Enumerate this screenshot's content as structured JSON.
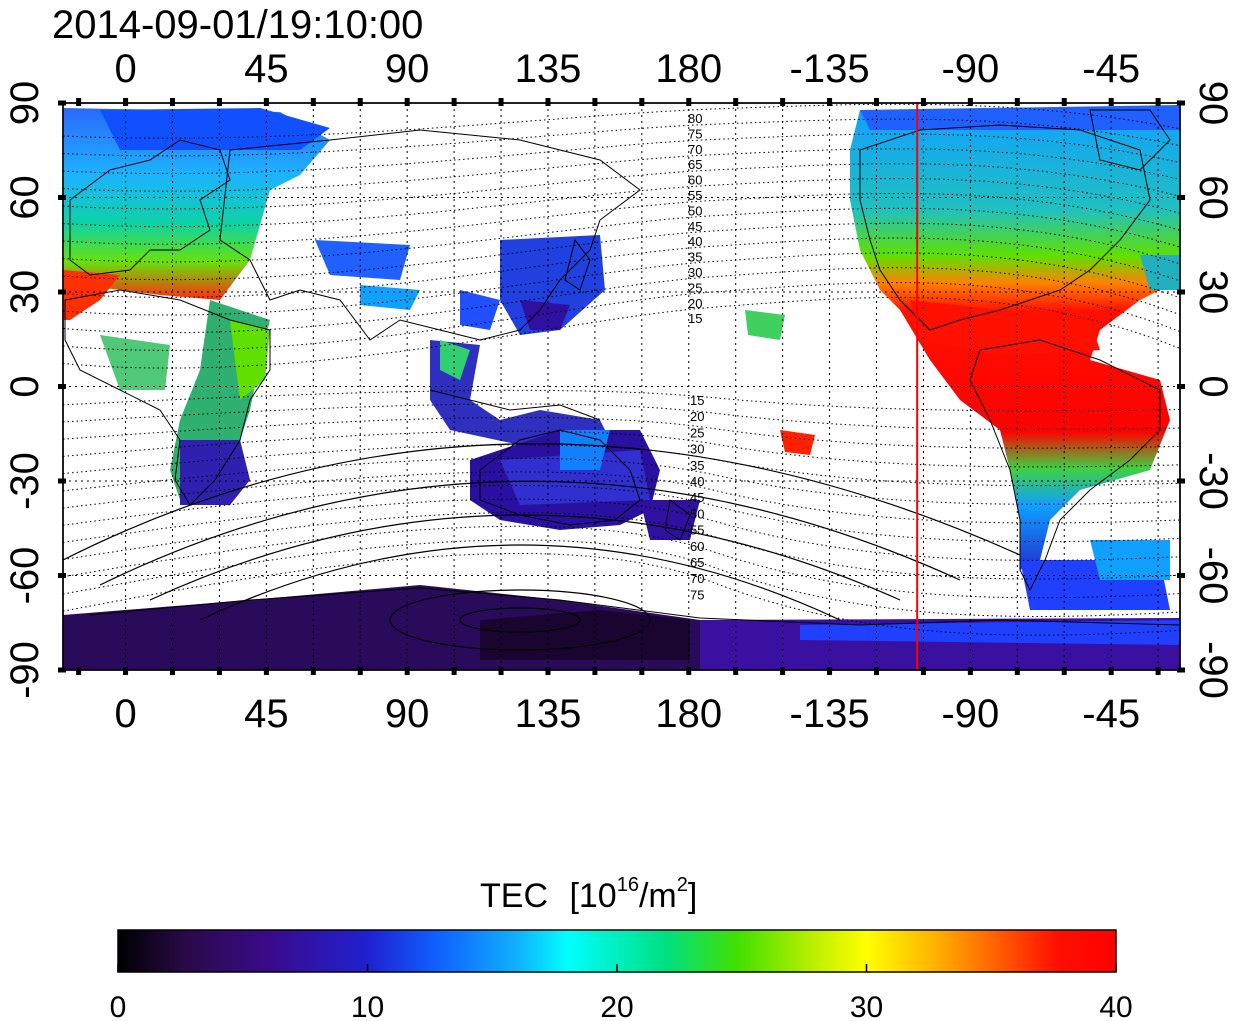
{
  "title": "2014-09-01/19:10:00",
  "lon_ticks_top": [
    "0",
    "45",
    "90",
    "135",
    "180",
    "-135",
    "-90",
    "-45"
  ],
  "lon_ticks_bottom": [
    "0",
    "45",
    "90",
    "135",
    "180",
    "-135",
    "-90",
    "-45"
  ],
  "lat_ticks_left": [
    "90",
    "60",
    "30",
    "0",
    "-30",
    "-60",
    "-90"
  ],
  "lat_ticks_right": [
    "90",
    "60",
    "30",
    "0",
    "-30",
    "-60",
    "-90"
  ],
  "maglat_labels_north": [
    "80",
    "75",
    "70",
    "65",
    "60",
    "55",
    "50",
    "45",
    "40",
    "35",
    "30",
    "25",
    "20",
    "15"
  ],
  "maglat_labels_south": [
    "15",
    "20",
    "25",
    "30",
    "35",
    "40",
    "45",
    "50",
    "55",
    "60",
    "65",
    "70",
    "75"
  ],
  "colorbar": {
    "title": "TEC",
    "unit_prefix": "[10",
    "unit_exp": "16",
    "unit_mid": "/m",
    "unit_exp2": "2",
    "unit_suffix": "]",
    "min": 0,
    "max": 40,
    "ticks": [
      "0",
      "10",
      "20",
      "30",
      "40"
    ],
    "colors": [
      "#000000",
      "#2a0a4a",
      "#3a0a8a",
      "#2020d0",
      "#1060ff",
      "#10b0ff",
      "#00ffff",
      "#00e080",
      "#40e000",
      "#c0f000",
      "#ffff00",
      "#ffb000",
      "#ff6000",
      "#ff1000",
      "#ff0000"
    ]
  },
  "map": {
    "lon_range": [
      -20,
      337
    ],
    "lat_range": [
      -90,
      90
    ],
    "terminator_lon": -107,
    "terminator_color": "#ff0000"
  }
}
